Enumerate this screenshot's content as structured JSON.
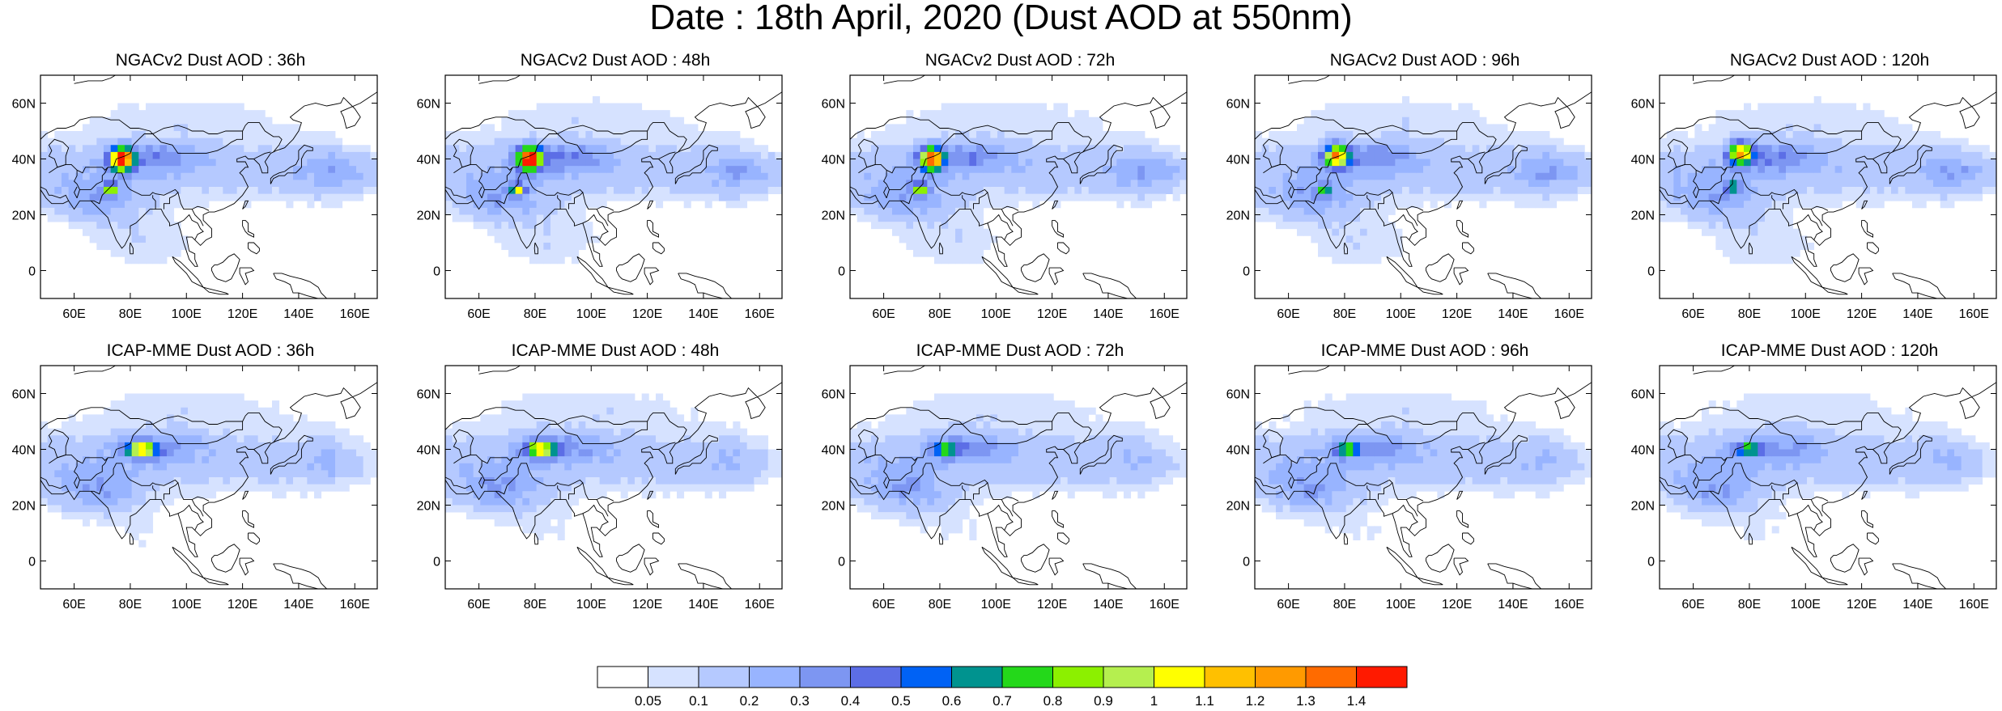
{
  "title": "Date : 18th April, 2020 (Dust AOD at 550nm)",
  "axes": {
    "lat_labels": [
      "60N",
      "40N",
      "20N",
      "0"
    ],
    "lon_labels": [
      "60E",
      "80E",
      "100E",
      "120E",
      "140E",
      "160E"
    ],
    "lat_values": [
      60,
      40,
      20,
      0
    ],
    "lon_values": [
      60,
      80,
      100,
      120,
      140,
      160
    ],
    "lat_range": [
      -10,
      70
    ],
    "lon_range": [
      48,
      168
    ]
  },
  "panels": [
    {
      "title": "NGACv2 Dust AOD : 36h",
      "model": "NGACv2",
      "lead": "36h",
      "hotspots": [
        {
          "lon": 77,
          "lat": 40,
          "peak": 1.4,
          "sx": 4,
          "sy": 4
        },
        {
          "lon": 73,
          "lat": 29,
          "peak": 0.8,
          "sx": 2.5,
          "sy": 2
        }
      ]
    },
    {
      "title": "NGACv2 Dust AOD : 48h",
      "model": "NGACv2",
      "lead": "48h",
      "hotspots": [
        {
          "lon": 78,
          "lat": 40,
          "peak": 1.4,
          "sx": 4,
          "sy": 4
        },
        {
          "lon": 74,
          "lat": 29,
          "peak": 0.8,
          "sx": 2.5,
          "sy": 2
        }
      ]
    },
    {
      "title": "NGACv2 Dust AOD : 72h",
      "model": "NGACv2",
      "lead": "72h",
      "hotspots": [
        {
          "lon": 77,
          "lat": 40,
          "peak": 1.2,
          "sx": 4,
          "sy": 4
        },
        {
          "lon": 73,
          "lat": 29,
          "peak": 0.8,
          "sx": 2.5,
          "sy": 2
        }
      ]
    },
    {
      "title": "NGACv2 Dust AOD : 96h",
      "model": "NGACv2",
      "lead": "96h",
      "hotspots": [
        {
          "lon": 77,
          "lat": 41,
          "peak": 1.1,
          "sx": 4,
          "sy": 4
        },
        {
          "lon": 73,
          "lat": 29,
          "peak": 0.7,
          "sx": 2,
          "sy": 2
        }
      ]
    },
    {
      "title": "NGACv2 Dust AOD : 120h",
      "model": "NGACv2",
      "lead": "120h",
      "hotspots": [
        {
          "lon": 77,
          "lat": 42,
          "peak": 1.0,
          "sx": 4,
          "sy": 4
        },
        {
          "lon": 74,
          "lat": 30,
          "peak": 0.6,
          "sx": 2,
          "sy": 2
        }
      ]
    },
    {
      "title": "ICAP-MME Dust AOD : 36h",
      "model": "ICAP-MME",
      "lead": "36h",
      "hotspots": [
        {
          "lon": 84,
          "lat": 40,
          "peak": 1.0,
          "sx": 5,
          "sy": 2.5
        }
      ]
    },
    {
      "title": "ICAP-MME Dust AOD : 48h",
      "model": "ICAP-MME",
      "lead": "48h",
      "hotspots": [
        {
          "lon": 82,
          "lat": 40,
          "peak": 0.9,
          "sx": 5,
          "sy": 2.5
        }
      ]
    },
    {
      "title": "ICAP-MME Dust AOD : 72h",
      "model": "ICAP-MME",
      "lead": "72h",
      "hotspots": [
        {
          "lon": 82,
          "lat": 40,
          "peak": 0.6,
          "sx": 4,
          "sy": 2.5
        }
      ]
    },
    {
      "title": "ICAP-MME Dust AOD : 96h",
      "model": "ICAP-MME",
      "lead": "96h",
      "hotspots": [
        {
          "lon": 81,
          "lat": 40,
          "peak": 0.55,
          "sx": 4,
          "sy": 2.5
        }
      ]
    },
    {
      "title": "ICAP-MME Dust AOD : 120h",
      "model": "ICAP-MME",
      "lead": "120h",
      "hotspots": [
        {
          "lon": 80,
          "lat": 40,
          "peak": 0.55,
          "sx": 4,
          "sy": 2.5
        }
      ]
    }
  ],
  "colorbar": {
    "labels": [
      "0.05",
      "0.1",
      "0.2",
      "0.3",
      "0.4",
      "0.5",
      "0.6",
      "0.7",
      "0.8",
      "0.9",
      "1",
      "1.1",
      "1.2",
      "1.3",
      "1.4"
    ],
    "thresholds": [
      0.05,
      0.1,
      0.2,
      0.3,
      0.4,
      0.5,
      0.6,
      0.7,
      0.8,
      0.9,
      1.0,
      1.1,
      1.2,
      1.3,
      1.4
    ],
    "colors": [
      "#ffffff",
      "#d6e2ff",
      "#b5c9ff",
      "#98b4ff",
      "#7d96f2",
      "#5c6ee6",
      "#0062f5",
      "#00938f",
      "#24d81a",
      "#8cf000",
      "#b5ef4f",
      "#ffff00",
      "#ffc000",
      "#ff9a00",
      "#ff6b00",
      "#ff1a00"
    ]
  }
}
